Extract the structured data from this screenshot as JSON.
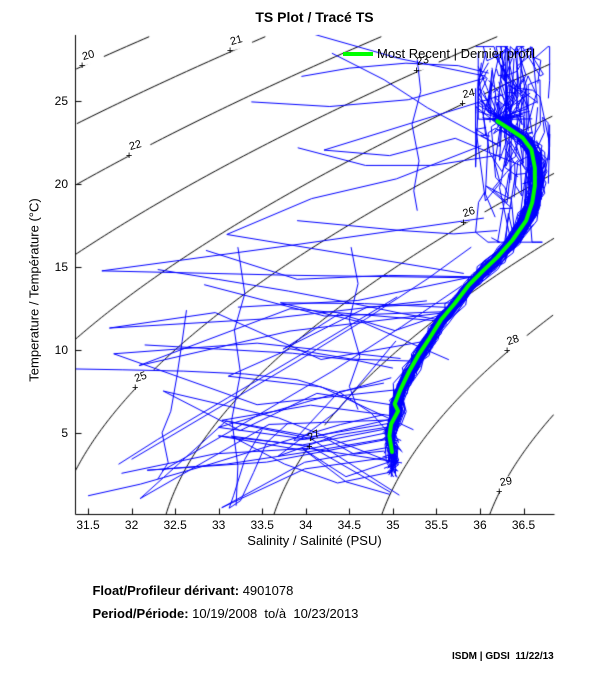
{
  "title": "TS Plot / Tracé TS",
  "legend": {
    "label": "Most Recent | Dernier profil",
    "line_color": "#00ff00"
  },
  "axes": {
    "x_label": "Salinity / Salinité (PSU)",
    "y_label": "Temperature / Température (°C)",
    "x_range": [
      31.35,
      36.85
    ],
    "y_range": [
      0.1,
      29.0
    ],
    "x_ticks": [
      {
        "v": 31.5,
        "label": "31.5"
      },
      {
        "v": 32,
        "label": "32"
      },
      {
        "v": 32.5,
        "label": "32.5"
      },
      {
        "v": 33,
        "label": "33"
      },
      {
        "v": 33.5,
        "label": "33.5"
      },
      {
        "v": 34,
        "label": "34"
      },
      {
        "v": 34.5,
        "label": "34.5"
      },
      {
        "v": 35,
        "label": "35"
      },
      {
        "v": 35.5,
        "label": "35.5"
      },
      {
        "v": 36,
        "label": "36"
      },
      {
        "v": 36.5,
        "label": "36.5"
      }
    ],
    "y_ticks": [
      {
        "v": 5,
        "label": "5"
      },
      {
        "v": 10,
        "label": "10"
      },
      {
        "v": 15,
        "label": "15"
      },
      {
        "v": 20,
        "label": "20"
      },
      {
        "v": 25,
        "label": "25"
      }
    ]
  },
  "footer": {
    "float_label": "Float/Profileur dérivant:",
    "float_value": " 4901078",
    "period_label": "Period/Période:",
    "period_value": " 10/19/2008  to/à  10/23/2013",
    "credit": "ISDM | GDSI  11/22/13"
  },
  "colors": {
    "profiles": "#0000ff",
    "most_recent": "#00ff00",
    "contours": "#000000",
    "axis": "#000000",
    "background": "#ffffff"
  },
  "chart_data": {
    "type": "line",
    "title": "TS Plot / Tracé TS",
    "xlabel": "Salinity / Salinité (PSU)",
    "ylabel": "Temperature / Température (°C)",
    "xlim": [
      31.35,
      36.85
    ],
    "ylim": [
      0.1,
      29.0
    ],
    "grid": false,
    "legend_position": "top-right-inside",
    "sigma_t_contours": {
      "levels": [
        20,
        21,
        22,
        23,
        24,
        25,
        26,
        27,
        28,
        29
      ],
      "labels": [
        {
          "level": "20",
          "s": 31.44,
          "t": 27.07,
          "angle": -15
        },
        {
          "level": "21",
          "s": 33.14,
          "t": 27.97,
          "angle": -15
        },
        {
          "level": "22",
          "s": 31.98,
          "t": 21.64,
          "angle": -15
        },
        {
          "level": "23",
          "s": 35.28,
          "t": 26.77,
          "angle": -12
        },
        {
          "level": "24",
          "s": 35.81,
          "t": 24.78,
          "angle": -12
        },
        {
          "level": "25",
          "s": 32.05,
          "t": 7.64,
          "angle": -20
        },
        {
          "level": "26",
          "s": 35.82,
          "t": 17.6,
          "angle": -18
        },
        {
          "level": "27",
          "s": 34.05,
          "t": 4.08,
          "angle": -26
        },
        {
          "level": "28",
          "s": 36.32,
          "t": 9.87,
          "angle": -18
        },
        {
          "level": "29",
          "s": 36.23,
          "t": 1.37,
          "angle": -10
        }
      ]
    },
    "most_recent_profile": {
      "color": "#00ff00",
      "points": [
        [
          36.2,
          23.8
        ],
        [
          36.35,
          23.3
        ],
        [
          36.49,
          22.8
        ],
        [
          36.59,
          22.1
        ],
        [
          36.63,
          21.0
        ],
        [
          36.63,
          19.9
        ],
        [
          36.6,
          18.9
        ],
        [
          36.53,
          17.8
        ],
        [
          36.37,
          16.6
        ],
        [
          36.2,
          15.6
        ],
        [
          36.04,
          14.8
        ],
        [
          35.87,
          13.9
        ],
        [
          35.71,
          12.8
        ],
        [
          35.55,
          11.8
        ],
        [
          35.42,
          10.7
        ],
        [
          35.3,
          9.75
        ],
        [
          35.19,
          8.73
        ],
        [
          35.09,
          7.64
        ],
        [
          35.02,
          6.74
        ],
        [
          35.06,
          6.31
        ],
        [
          34.98,
          5.53
        ],
        [
          34.96,
          4.81
        ],
        [
          34.99,
          3.84
        ]
      ]
    },
    "profiles": {
      "color": "#0000ff",
      "seed": 7,
      "count_band": 115,
      "count_upper_tangle": 40,
      "count_left_excursions": 22,
      "count_high_excursions": 5,
      "extra_polylines": [
        [
          [
            31.36,
            8.85
          ],
          [
            31.9,
            8.8
          ],
          [
            32.6,
            8.72
          ],
          [
            33.3,
            8.55
          ],
          [
            33.9,
            8.2
          ],
          [
            34.4,
            7.4
          ],
          [
            34.75,
            6.2
          ],
          [
            34.95,
            5.0
          ]
        ],
        [
          [
            31.5,
            1.2
          ],
          [
            32.1,
            1.9
          ],
          [
            32.9,
            3.1
          ],
          [
            33.7,
            4.4
          ],
          [
            34.4,
            5.5
          ],
          [
            34.9,
            6.1
          ]
        ],
        [
          [
            33.5,
            5.2
          ],
          [
            33.3,
            3.4
          ],
          [
            33.17,
            1.2
          ],
          [
            33.12,
            0.45
          ],
          [
            33.25,
            0.9
          ],
          [
            33.4,
            2.6
          ],
          [
            33.55,
            4.4
          ],
          [
            33.8,
            5.6
          ]
        ],
        [
          [
            32.63,
            12.4
          ],
          [
            32.58,
            10.5
          ],
          [
            32.52,
            8.4
          ],
          [
            32.45,
            6.3
          ],
          [
            32.35,
            5.0
          ],
          [
            32.42,
            3.2
          ],
          [
            32.3,
            2.2
          ]
        ],
        [
          [
            35.28,
            27.5
          ],
          [
            35.32,
            25.6
          ],
          [
            35.22,
            23.6
          ],
          [
            35.3,
            21.4
          ],
          [
            35.24,
            19.6
          ],
          [
            35.28,
            18.4
          ]
        ],
        [
          [
            33.95,
            26.5
          ],
          [
            34.5,
            27.0
          ],
          [
            35.15,
            27.3
          ],
          [
            35.75,
            27.15
          ],
          [
            36.1,
            26.7
          ]
        ],
        [
          [
            32.0,
            3.4
          ],
          [
            32.9,
            6.2
          ],
          [
            33.9,
            9.3
          ],
          [
            34.7,
            11.9
          ],
          [
            35.4,
            14.3
          ],
          [
            35.9,
            16.2
          ]
        ],
        [
          [
            32.35,
            2.7
          ],
          [
            33.3,
            5.6
          ],
          [
            34.3,
            8.7
          ],
          [
            35.1,
            11.4
          ],
          [
            35.8,
            13.9
          ]
        ],
        [
          [
            35.05,
            13.2
          ],
          [
            34.1,
            10.2
          ],
          [
            33.1,
            7.1
          ],
          [
            32.3,
            4.6
          ],
          [
            31.85,
            3.1
          ]
        ],
        [
          [
            32.15,
            10.3
          ],
          [
            33.0,
            10.05
          ],
          [
            33.85,
            9.8
          ],
          [
            34.6,
            9.35
          ],
          [
            35.0,
            8.9
          ]
        ],
        [
          [
            32.3,
            14.85
          ],
          [
            33.0,
            14.25
          ],
          [
            33.8,
            13.55
          ],
          [
            34.5,
            12.85
          ],
          [
            35.1,
            12.2
          ],
          [
            35.55,
            11.8
          ]
        ],
        [
          [
            34.52,
            16.2
          ],
          [
            34.6,
            14.0
          ],
          [
            34.5,
            11.8
          ],
          [
            34.62,
            9.6
          ],
          [
            34.5,
            7.8
          ],
          [
            34.6,
            6.4
          ]
        ],
        [
          [
            33.2,
            0.6
          ],
          [
            33.22,
            3.0
          ],
          [
            33.15,
            5.8
          ],
          [
            33.25,
            8.6
          ],
          [
            33.18,
            11.2
          ],
          [
            33.3,
            13.4
          ],
          [
            33.22,
            16.2
          ]
        ],
        [
          [
            34.3,
            27.9
          ],
          [
            34.9,
            26.3
          ],
          [
            35.4,
            24.6
          ],
          [
            35.9,
            23.2
          ],
          [
            36.2,
            22.4
          ]
        ],
        [
          [
            33.9,
            17.8
          ],
          [
            34.5,
            17.5
          ],
          [
            35.1,
            17.2
          ],
          [
            35.7,
            17.0
          ],
          [
            36.2,
            17.2
          ]
        ]
      ]
    }
  }
}
